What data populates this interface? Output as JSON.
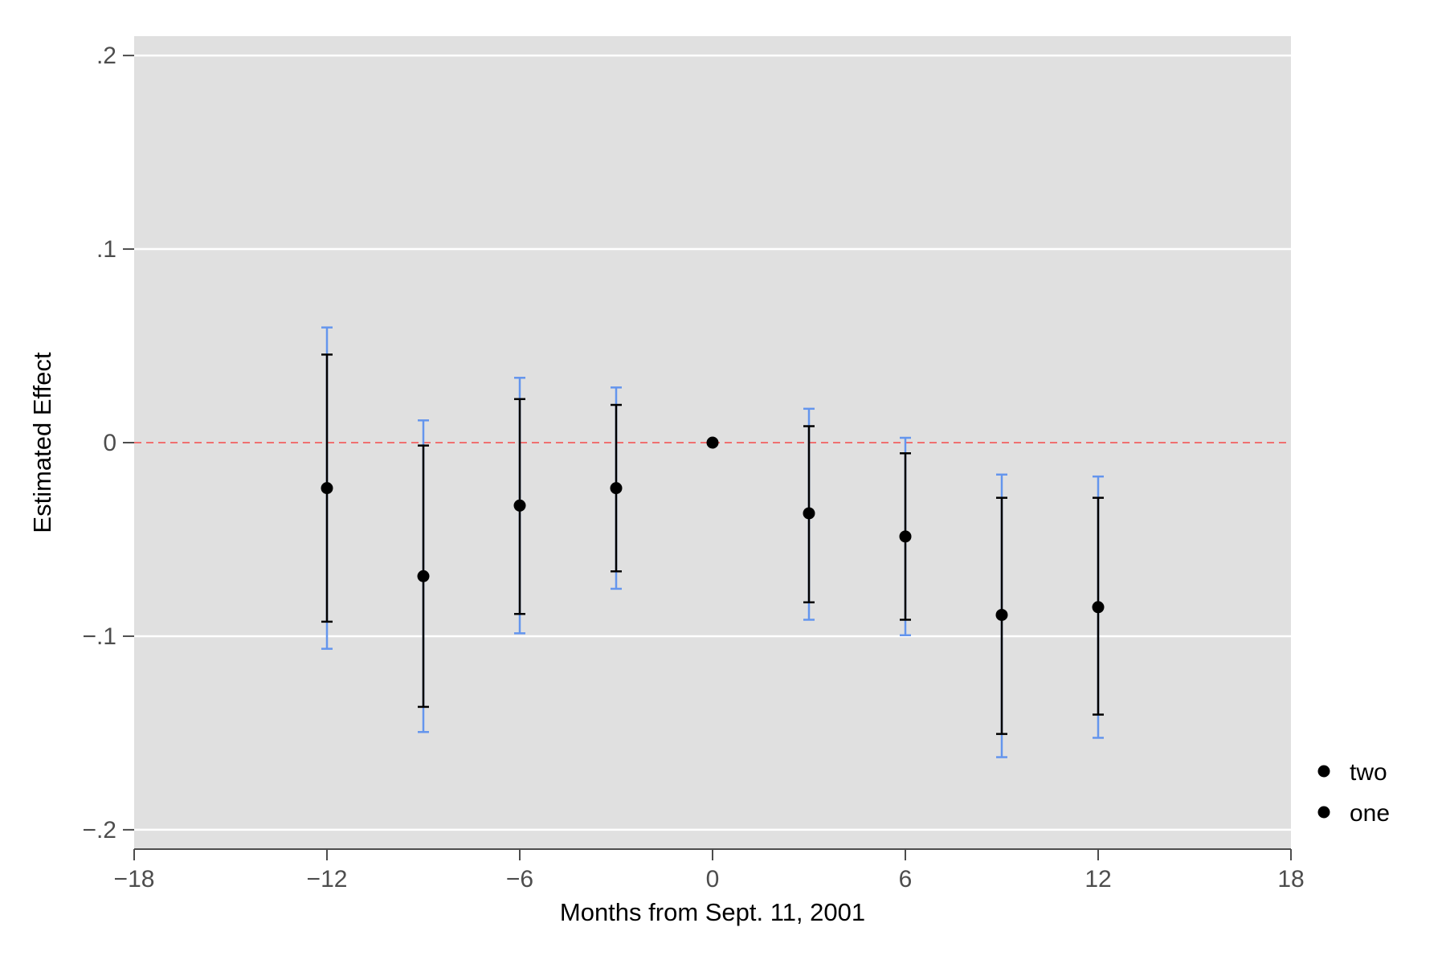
{
  "chart_data": {
    "type": "scatter",
    "title": "",
    "xlabel": "Months from Sept. 11, 2001",
    "ylabel": "Estimated Effect",
    "xlim": [
      -18,
      18
    ],
    "ylim": [
      -0.21,
      0.21
    ],
    "x_ticks": [
      -18,
      -12,
      -6,
      0,
      6,
      12,
      18
    ],
    "x_tick_labels": [
      "−18",
      "−12",
      "−6",
      "0",
      "6",
      "12",
      "18"
    ],
    "y_ticks": [
      0.2,
      0.1,
      0,
      -0.1,
      -0.2
    ],
    "y_tick_labels": [
      ".2",
      ".1",
      "0",
      "−.1",
      "−.2"
    ],
    "grid": true,
    "reference_line": {
      "y": 0,
      "style": "dashed",
      "color": "#f07070"
    },
    "legend_position": "right",
    "series": [
      {
        "name": "two",
        "color": "#6495ed",
        "description": "wider confidence interval",
        "points": [
          {
            "x": -12,
            "y": -0.0235,
            "low": -0.1065,
            "high": 0.0595
          },
          {
            "x": -9,
            "y": -0.069,
            "low": -0.1495,
            "high": 0.0115
          },
          {
            "x": -6,
            "y": -0.0325,
            "low": -0.0985,
            "high": 0.0335
          },
          {
            "x": -3,
            "y": -0.0235,
            "low": -0.0755,
            "high": 0.0285
          },
          {
            "x": 3,
            "y": -0.0365,
            "low": -0.0915,
            "high": 0.0175
          },
          {
            "x": 6,
            "y": -0.0485,
            "low": -0.0995,
            "high": 0.0025
          },
          {
            "x": 9,
            "y": -0.089,
            "low": -0.1625,
            "high": -0.0165
          },
          {
            "x": 12,
            "y": -0.085,
            "low": -0.1525,
            "high": -0.0175
          }
        ]
      },
      {
        "name": "one",
        "color": "#000000",
        "description": "narrower confidence interval",
        "points": [
          {
            "x": -12,
            "y": -0.0235,
            "low": -0.0925,
            "high": 0.0455
          },
          {
            "x": -9,
            "y": -0.069,
            "low": -0.1365,
            "high": -0.0015
          },
          {
            "x": -6,
            "y": -0.0325,
            "low": -0.0885,
            "high": 0.0225
          },
          {
            "x": -3,
            "y": -0.0235,
            "low": -0.0665,
            "high": 0.0195
          },
          {
            "x": 0,
            "y": 0,
            "low": 0,
            "high": 0
          },
          {
            "x": 3,
            "y": -0.0365,
            "low": -0.0825,
            "high": 0.0085
          },
          {
            "x": 6,
            "y": -0.0485,
            "low": -0.0915,
            "high": -0.0055
          },
          {
            "x": 9,
            "y": -0.089,
            "low": -0.1505,
            "high": -0.0285
          },
          {
            "x": 12,
            "y": -0.085,
            "low": -0.1405,
            "high": -0.0285
          }
        ]
      }
    ],
    "legend": [
      {
        "label": "two",
        "color": "#000000"
      },
      {
        "label": "one",
        "color": "#000000"
      }
    ],
    "colors": {
      "panel_background": "#e0e0e0",
      "gridline": "#ffffff",
      "axis": "#4d4d4d"
    }
  }
}
